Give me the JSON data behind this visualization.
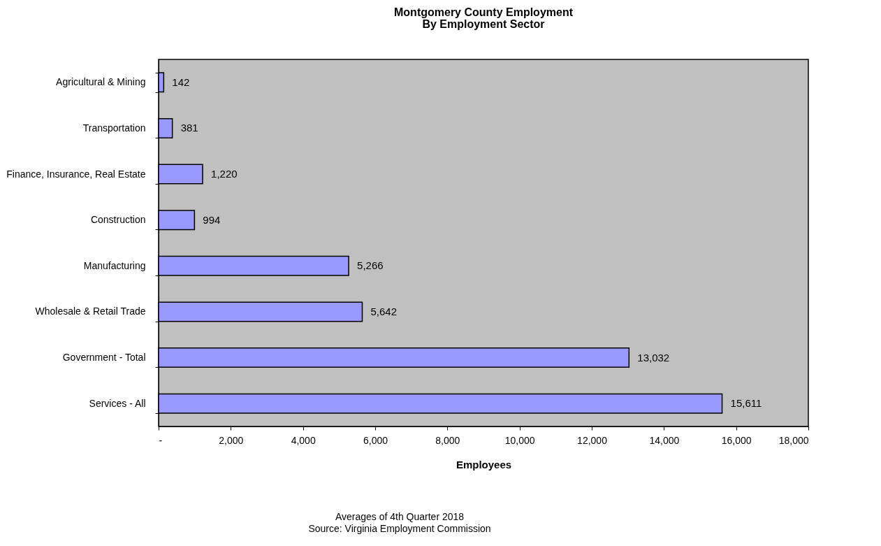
{
  "chart_data": {
    "type": "bar",
    "orientation": "horizontal",
    "title": "Montgomery County Employment",
    "subtitle": "By Employment Sector",
    "xlabel": "Employees",
    "categories": [
      "Agricultural & Mining",
      "Transportation",
      "Finance, Insurance, Real Estate",
      "Construction",
      "Manufacturing",
      "Wholesale & Retail Trade",
      "Government - Total",
      "Services - All"
    ],
    "values": [
      142,
      381,
      1220,
      994,
      5266,
      5642,
      13032,
      15611
    ],
    "value_labels": [
      "142",
      "381",
      "1,220",
      "994",
      "5,266",
      "5,642",
      "13,032",
      "15,611"
    ],
    "color": "#9999ff",
    "xlim": [
      0,
      18000
    ],
    "xticks": [
      {
        "value": 0,
        "label": "-"
      },
      {
        "value": 2000,
        "label": "2,000"
      },
      {
        "value": 4000,
        "label": "4,000"
      },
      {
        "value": 6000,
        "label": "6,000"
      },
      {
        "value": 8000,
        "label": "8,000"
      },
      {
        "value": 10000,
        "label": "10,000"
      },
      {
        "value": 12000,
        "label": "12,000"
      },
      {
        "value": 14000,
        "label": "14,000"
      },
      {
        "value": 16000,
        "label": "16,000"
      },
      {
        "value": 18000,
        "label": "18,000"
      }
    ],
    "grid": false,
    "annotations": [
      "Averages of 4th Quarter 2018",
      "Source: Virginia Employment Commission"
    ]
  }
}
